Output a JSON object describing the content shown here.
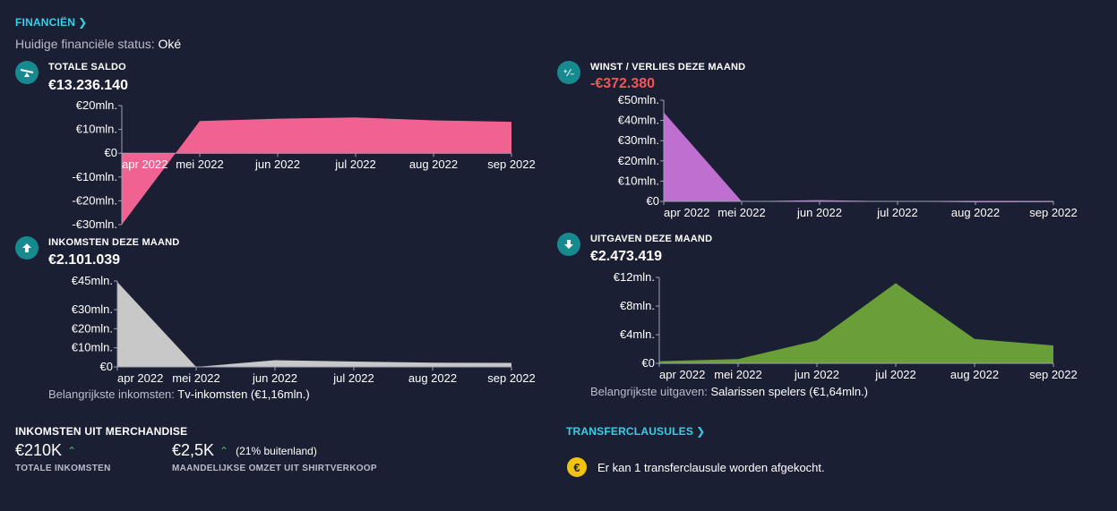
{
  "header": {
    "title": "FINANCIËN",
    "status_label": "Huidige financiële status:",
    "status_value": "Oké"
  },
  "panels": {
    "balance": {
      "icon": "balance-scale-icon",
      "title": "TOTALE SALDO",
      "value": "€13.236.140"
    },
    "profit": {
      "icon": "plus-minus-icon",
      "title": "WINST / VERLIES DEZE MAAND",
      "value": "-€372.380"
    },
    "income": {
      "icon": "arrow-up-icon",
      "title": "INKOMSTEN DEZE MAAND",
      "value": "€2.101.039",
      "note_label": "Belangrijkste inkomsten:",
      "note_value": "Tv-inkomsten (€1,16mln.)"
    },
    "expenses": {
      "icon": "arrow-down-icon",
      "title": "UITGAVEN DEZE MAAND",
      "value": "€2.473.419",
      "note_label": "Belangrijkste uitgaven:",
      "note_value": "Salarissen spelers (€1,64mln.)"
    }
  },
  "merchandise": {
    "title": "INKOMSTEN UIT MERCHANDISE",
    "total_value": "€210K",
    "total_label": "TOTALE INKOMSTEN",
    "monthly_value": "€2,5K",
    "monthly_extra": "(21% buitenland)",
    "monthly_label": "MAANDELIJKSE OMZET UIT SHIRTVERKOOP"
  },
  "transfer": {
    "title": "TRANSFERCLAUSULES",
    "icon": "euro-coin-icon",
    "coin_glyph": "€",
    "message": "Er kan 1 transferclausule worden afgekocht."
  },
  "chart_data": [
    {
      "type": "area",
      "id": "balance",
      "categories": [
        "apr 2022",
        "mei 2022",
        "jun 2022",
        "jul 2022",
        "aug 2022",
        "sep 2022"
      ],
      "series": [
        {
          "values": [
            -30,
            13.5,
            14.5,
            15,
            13.8,
            13.2
          ]
        }
      ],
      "y_ticks": [
        20,
        10,
        0,
        -10,
        -20,
        -30
      ],
      "y_tick_labels": [
        "€20mln.",
        "€10mln.",
        "€0",
        "-€10mln.",
        "-€20mln.",
        "-€30mln."
      ],
      "ylim": [
        -30,
        20
      ],
      "color": "#f06292"
    },
    {
      "type": "area",
      "id": "profit",
      "categories": [
        "apr 2022",
        "mei 2022",
        "jun 2022",
        "jul 2022",
        "aug 2022",
        "sep 2022"
      ],
      "series": [
        {
          "values": [
            44,
            0,
            0.6,
            0,
            -0.5,
            -0.4
          ]
        }
      ],
      "y_ticks": [
        50,
        40,
        30,
        20,
        10,
        0
      ],
      "y_tick_labels": [
        "€50mln.",
        "€40mln.",
        "€30mln.",
        "€20mln.",
        "€10mln.",
        "€0"
      ],
      "ylim": [
        0,
        50
      ],
      "color": "#bf6fd0"
    },
    {
      "type": "area",
      "id": "income",
      "categories": [
        "apr 2022",
        "mei 2022",
        "jun 2022",
        "jul 2022",
        "aug 2022",
        "sep 2022"
      ],
      "series": [
        {
          "values": [
            44.5,
            0,
            3.5,
            2.8,
            2.2,
            2.1
          ]
        }
      ],
      "y_ticks": [
        45,
        30,
        20,
        10,
        0
      ],
      "y_tick_labels": [
        "€45mln.",
        "€30mln.",
        "€20mln.",
        "€10mln.",
        "€0"
      ],
      "ylim": [
        0,
        45
      ],
      "color": "#c8c8c8"
    },
    {
      "type": "area",
      "id": "expenses",
      "categories": [
        "apr 2022",
        "mei 2022",
        "jun 2022",
        "jul 2022",
        "aug 2022",
        "sep 2022"
      ],
      "series": [
        {
          "values": [
            0.3,
            0.6,
            3.2,
            11.2,
            3.4,
            2.5
          ]
        }
      ],
      "y_ticks": [
        12,
        8,
        4,
        0
      ],
      "y_tick_labels": [
        "€12mln.",
        "€8mln.",
        "€4mln.",
        "€0"
      ],
      "ylim": [
        0,
        12
      ],
      "color": "#6a9e38"
    }
  ]
}
